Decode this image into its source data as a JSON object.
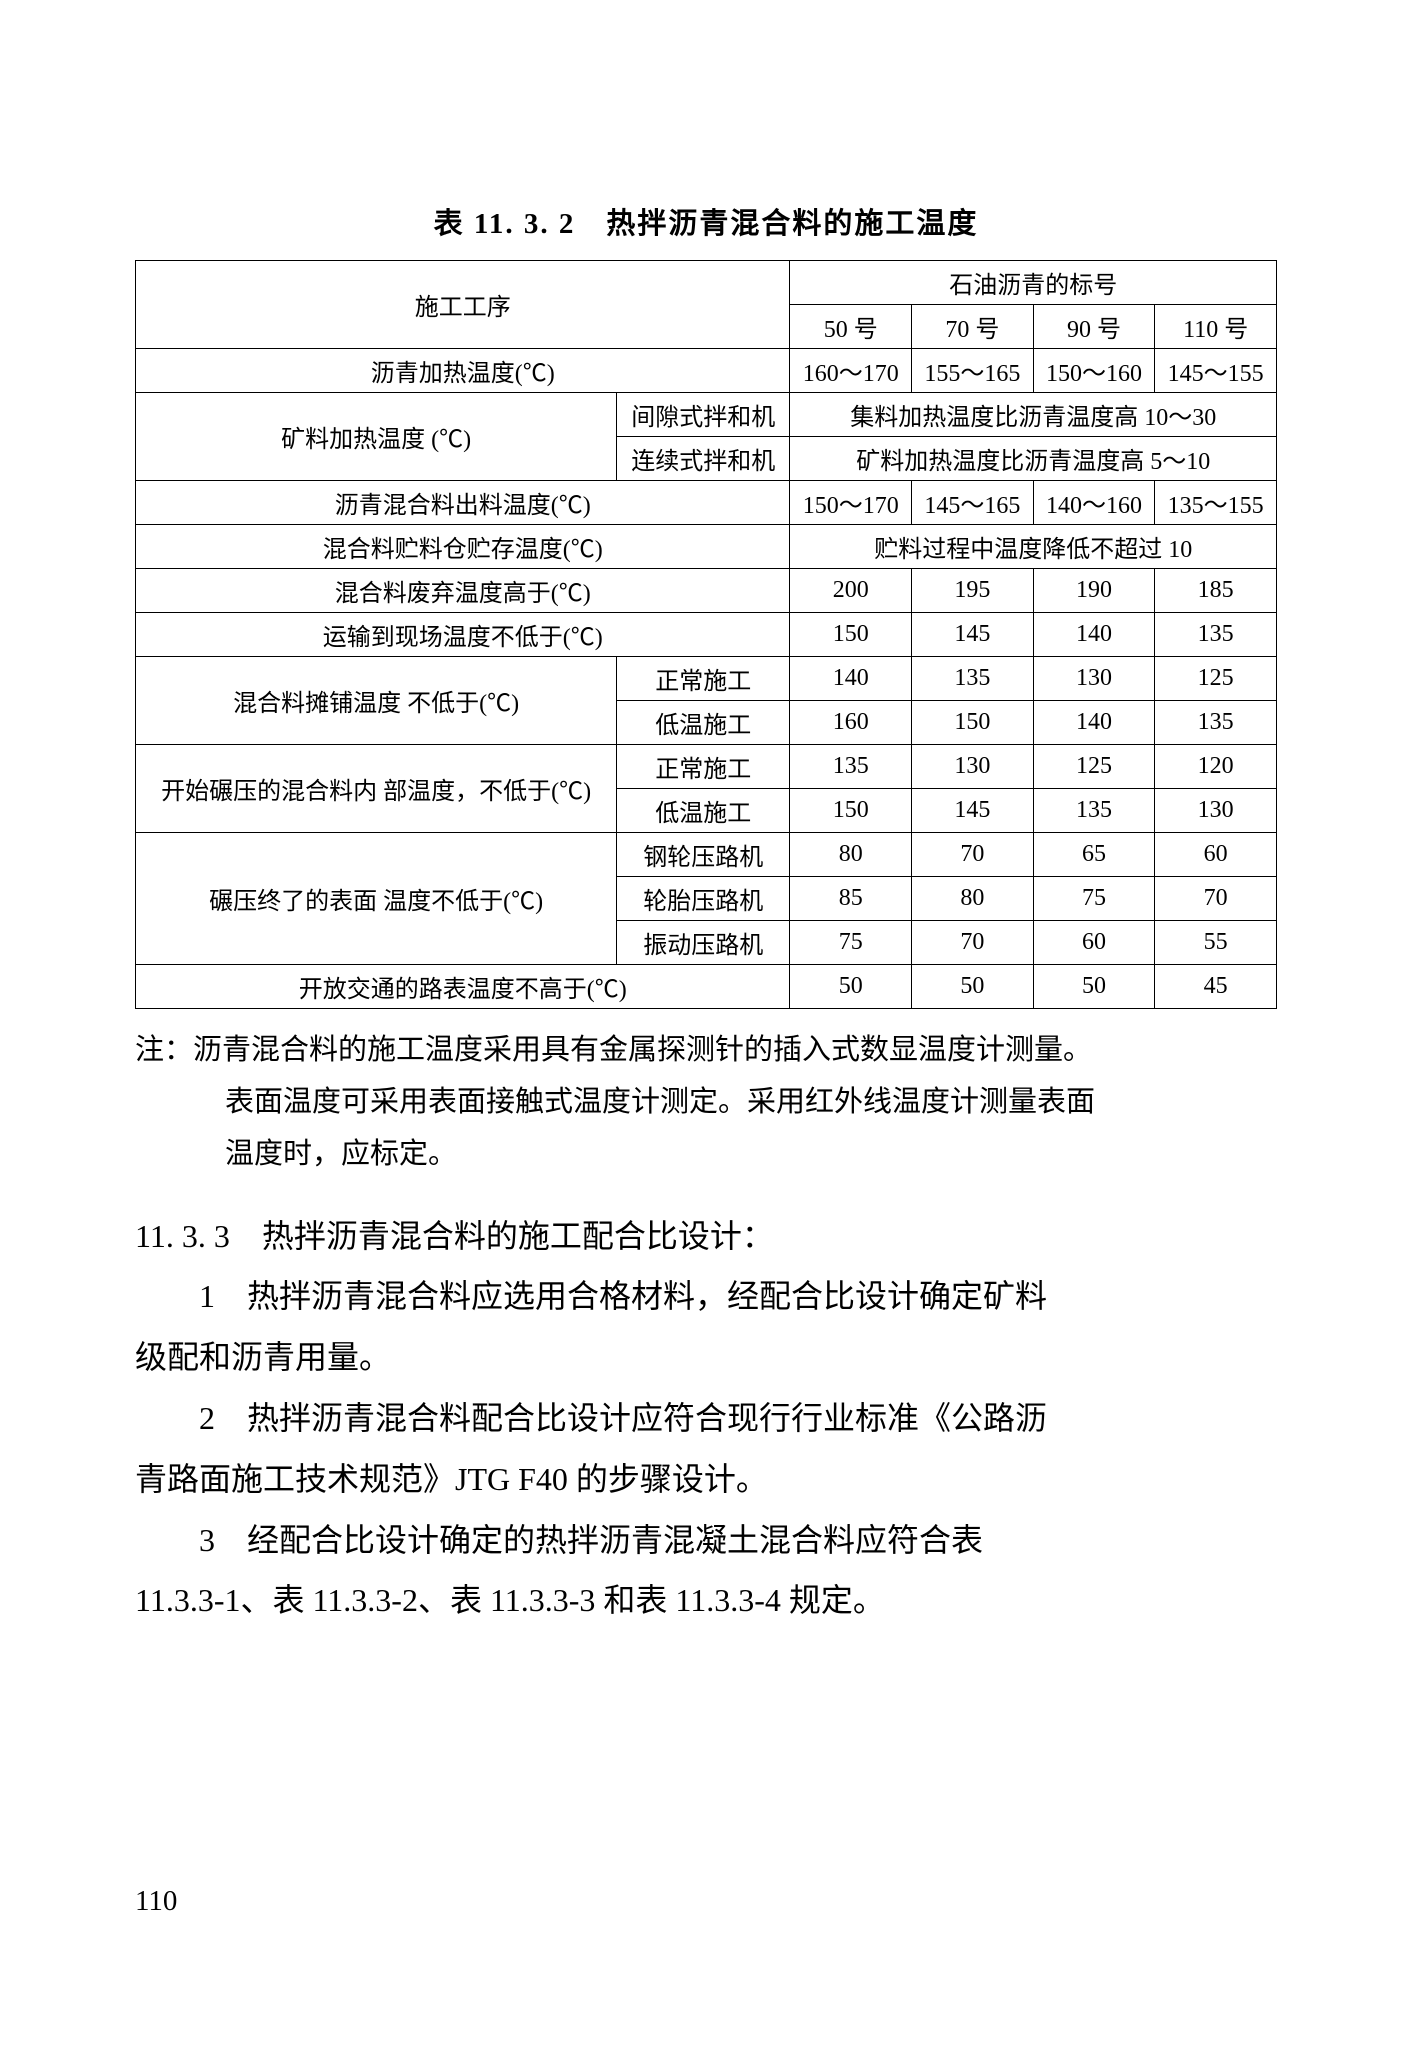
{
  "table": {
    "title": "表 11. 3. 2 热拌沥青混合料的施工温度",
    "header_proc": "施工工序",
    "header_top": "石油沥青的标号",
    "cols": [
      "50 号",
      "70 号",
      "90 号",
      "110 号"
    ],
    "r1_label": "沥青加热温度(℃)",
    "r1": [
      "160～170",
      "155～165",
      "150～160",
      "145～155"
    ],
    "r2_label": "矿料加热温度\n(℃)",
    "r2_sub1": "间隙式拌和机",
    "r2_sub1_span": "集料加热温度比沥青温度高 10～30",
    "r2_sub2": "连续式拌和机",
    "r2_sub2_span": "矿料加热温度比沥青温度高 5～10",
    "r3_label": "沥青混合料出料温度(℃)",
    "r3": [
      "150～170",
      "145～165",
      "140～160",
      "135～155"
    ],
    "r4_label": "混合料贮料仓贮存温度(℃)",
    "r4_span": "贮料过程中温度降低不超过 10",
    "r5_label": "混合料废弃温度高于(℃)",
    "r5": [
      "200",
      "195",
      "190",
      "185"
    ],
    "r6_label": "运输到现场温度不低于(℃)",
    "r6": [
      "150",
      "145",
      "140",
      "135"
    ],
    "r7_label": "混合料摊铺温度\n不低于(℃)",
    "r7_sub1": "正常施工",
    "r7_v1": [
      "140",
      "135",
      "130",
      "125"
    ],
    "r7_sub2": "低温施工",
    "r7_v2": [
      "160",
      "150",
      "140",
      "135"
    ],
    "r8_label": "开始碾压的混合料内\n部温度，不低于(℃)",
    "r8_sub1": "正常施工",
    "r8_v1": [
      "135",
      "130",
      "125",
      "120"
    ],
    "r8_sub2": "低温施工",
    "r8_v2": [
      "150",
      "145",
      "135",
      "130"
    ],
    "r9_label": "碾压终了的表面\n温度不低于(℃)",
    "r9_sub1": "钢轮压路机",
    "r9_v1": [
      "80",
      "70",
      "65",
      "60"
    ],
    "r9_sub2": "轮胎压路机",
    "r9_v2": [
      "85",
      "80",
      "75",
      "70"
    ],
    "r9_sub3": "振动压路机",
    "r9_v3": [
      "75",
      "70",
      "60",
      "55"
    ],
    "r10_label": "开放交通的路表温度不高于(℃)",
    "r10": [
      "50",
      "50",
      "50",
      "45"
    ]
  },
  "note": {
    "l1": "注：沥青混合料的施工温度采用具有金属探测针的插入式数显温度计测量。",
    "l2": "表面温度可采用表面接触式温度计测定。采用红外线温度计测量表面",
    "l3": "温度时，应标定。"
  },
  "section_heading": "11. 3. 3 热拌沥青混合料的施工配合比设计：",
  "para1": "1 热拌沥青混合料应选用合格材料，经配合比设计确定矿料",
  "para1_cont": "级配和沥青用量。",
  "para2": "2 热拌沥青混合料配合比设计应符合现行行业标准《公路沥",
  "para2_cont": "青路面施工技术规范》JTG F40 的步骤设计。",
  "para3": "3 经配合比设计确定的热拌沥青混凝土混合料应符合表",
  "para3_cont": "11.3.3-1、表 11.3.3-2、表 11.3.3-3 和表 11.3.3-4 规定。",
  "page_number": "110"
}
